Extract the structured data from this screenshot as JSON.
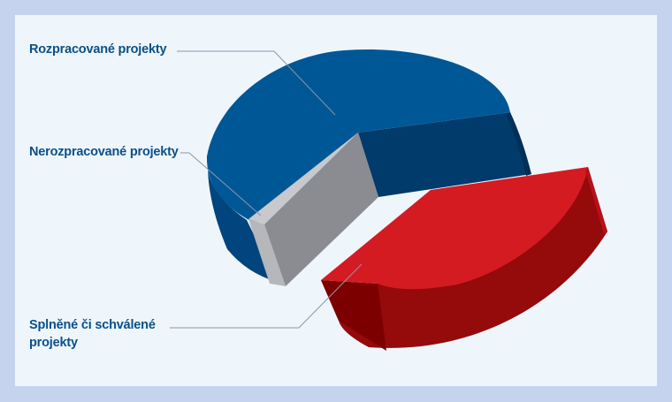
{
  "chart_data": {
    "type": "pie",
    "style": "3d-exploded",
    "slices": [
      {
        "label": "Rozpracované projekty",
        "share": 0.57,
        "color": "#00548f"
      },
      {
        "label": "Nerozpracované projekty",
        "share": 0.06,
        "color": "#8a8c92"
      },
      {
        "label": "Splněné či schválené projekty",
        "share": 0.37,
        "color": "#d4191f"
      }
    ],
    "legend": "outside-left with leader lines"
  }
}
